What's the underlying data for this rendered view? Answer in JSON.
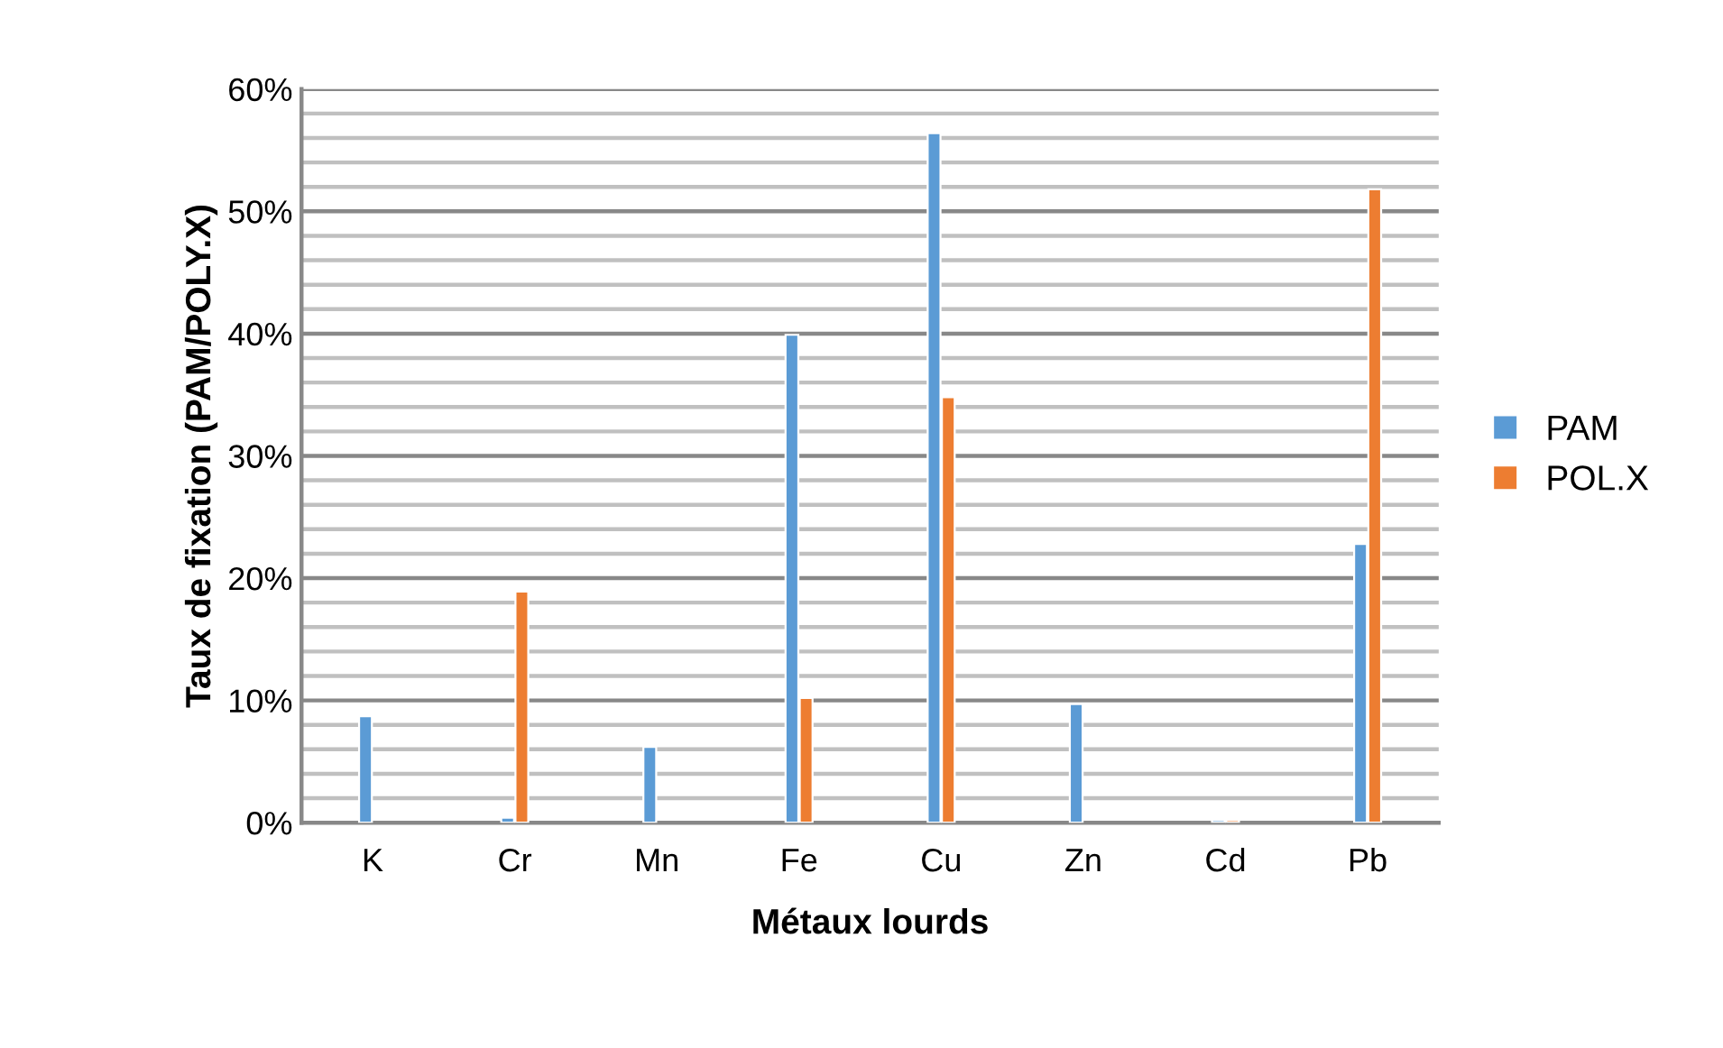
{
  "chart_data": {
    "type": "bar",
    "xlabel": "Métaux lourds",
    "ylabel": "Taux de fixation (PAM/POLY.X)",
    "categories": [
      "K",
      "Cr",
      "Mn",
      "Fe",
      "Cu",
      "Zn",
      "Cd",
      "Pb"
    ],
    "series": [
      {
        "name": "PAM",
        "color": "#5b9bd5",
        "values": [
          8.7,
          0.4,
          6.2,
          39.9,
          56.4,
          9.7,
          0.2,
          22.8
        ]
      },
      {
        "name": "POL.X",
        "color": "#ed7d31",
        "values": [
          null,
          18.9,
          null,
          10.2,
          34.8,
          null,
          0.2,
          51.8
        ]
      }
    ],
    "ylim": [
      0,
      60
    ],
    "yticks": [
      {
        "value": 0,
        "label": "0%"
      },
      {
        "value": 2,
        "label": null
      },
      {
        "value": 4,
        "label": null
      },
      {
        "value": 6,
        "label": null
      },
      {
        "value": 8,
        "label": null
      },
      {
        "value": 10,
        "label": "10%"
      },
      {
        "value": 12,
        "label": null
      },
      {
        "value": 14,
        "label": null
      },
      {
        "value": 16,
        "label": null
      },
      {
        "value": 18,
        "label": null
      },
      {
        "value": 20,
        "label": "20%"
      },
      {
        "value": 22,
        "label": null
      },
      {
        "value": 24,
        "label": null
      },
      {
        "value": 26,
        "label": null
      },
      {
        "value": 28,
        "label": null
      },
      {
        "value": 30,
        "label": "30%"
      },
      {
        "value": 32,
        "label": null
      },
      {
        "value": 34,
        "label": null
      },
      {
        "value": 36,
        "label": null
      },
      {
        "value": 38,
        "label": null
      },
      {
        "value": 40,
        "label": "40%"
      },
      {
        "value": 42,
        "label": null
      },
      {
        "value": 44,
        "label": null
      },
      {
        "value": 46,
        "label": null
      },
      {
        "value": 48,
        "label": null
      },
      {
        "value": 50,
        "label": "50%"
      },
      {
        "value": 52,
        "label": null
      },
      {
        "value": 54,
        "label": null
      },
      {
        "value": 56,
        "label": null
      },
      {
        "value": 58,
        "label": null
      },
      {
        "value": 60,
        "label": "60%"
      }
    ],
    "grid": "y",
    "legend": "right"
  }
}
